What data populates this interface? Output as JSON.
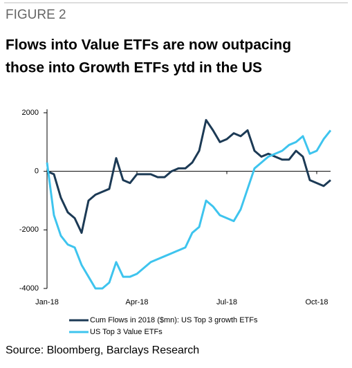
{
  "header": "FIGURE 2",
  "source": "Source: Bloomberg, Barclays Research",
  "chart_data": {
    "type": "line",
    "title": "Flows into Value ETFs are now outpacing those into Growth ETFs ytd in the US",
    "title_lines": [
      "Flows into Value ETFs are now outpacing",
      "those into Growth ETFs ytd in the US"
    ],
    "categories": [
      "Jan-18",
      null,
      null,
      null,
      null,
      null,
      null,
      null,
      null,
      null,
      null,
      null,
      null,
      "Apr-18",
      null,
      null,
      null,
      null,
      null,
      null,
      null,
      null,
      null,
      null,
      null,
      null,
      "Jul-18",
      null,
      null,
      null,
      null,
      null,
      null,
      null,
      null,
      null,
      null,
      null,
      null,
      "Oct-18",
      null,
      null
    ],
    "series": [
      {
        "name": "Cum Flows in 2018 ($mn): US Top 3 growth ETFs",
        "color": "#1c3a55",
        "values": [
          0,
          -100,
          -900,
          -1400,
          -1600,
          -2100,
          -1000,
          -800,
          -700,
          -600,
          450,
          -300,
          -400,
          -100,
          -100,
          -100,
          -200,
          -200,
          0,
          100,
          100,
          300,
          700,
          1750,
          1400,
          1000,
          1100,
          1300,
          1200,
          1400,
          700,
          500,
          600,
          500,
          400,
          400,
          700,
          500,
          -300,
          -400,
          -500,
          -300
        ]
      },
      {
        "name": "US Top 3 Value ETFs",
        "color": "#3ec4ee",
        "values": [
          300,
          -1500,
          -2200,
          -2500,
          -2600,
          -3200,
          -3600,
          -4000,
          -4000,
          -3800,
          -3100,
          -3600,
          -3600,
          -3500,
          -3300,
          -3100,
          -3000,
          -2900,
          -2800,
          -2700,
          -2600,
          -2100,
          -1900,
          -1000,
          -1200,
          -1500,
          -1600,
          -1700,
          -1300,
          -600,
          100,
          300,
          500,
          600,
          700,
          900,
          1000,
          1200,
          600,
          700,
          1100,
          1400
        ]
      }
    ],
    "ylim": [
      -4000,
      2000
    ],
    "yticks": [
      2000,
      0,
      -2000,
      -4000
    ]
  }
}
